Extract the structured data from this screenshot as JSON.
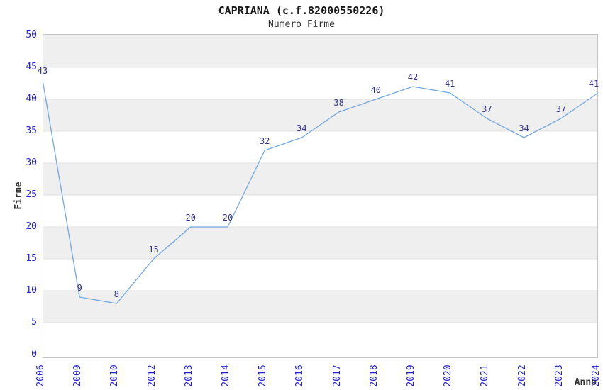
{
  "chart_data": {
    "type": "line",
    "title": "CAPRIANA (c.f.82000550226)",
    "subtitle": "Numero Firme",
    "xlabel": "Anno",
    "ylabel": "Firme",
    "categories": [
      "2006",
      "2009",
      "2010",
      "2012",
      "2013",
      "2014",
      "2015",
      "2016",
      "2017",
      "2018",
      "2019",
      "2020",
      "2021",
      "2022",
      "2023",
      "2024"
    ],
    "values": [
      43,
      9,
      8,
      15,
      20,
      20,
      32,
      34,
      38,
      40,
      42,
      41,
      37,
      34,
      37,
      41
    ],
    "ylim": [
      0,
      50
    ],
    "ytick_step": 5,
    "ytick_labels": [
      "0",
      "5",
      "10",
      "15",
      "20",
      "25",
      "30",
      "35",
      "40",
      "45",
      "50"
    ],
    "grid": "horizontal-bands-alternating",
    "legend": "none",
    "data_labels_shown": true,
    "colors": {
      "line": "#74a7de",
      "tick_label": "#2222cc",
      "data_label": "#333388",
      "band": "#efefef",
      "gridline": "#e0e0e0",
      "plot_border": "#c4c4c4",
      "text": "#333333",
      "background": "#ffffff"
    }
  }
}
